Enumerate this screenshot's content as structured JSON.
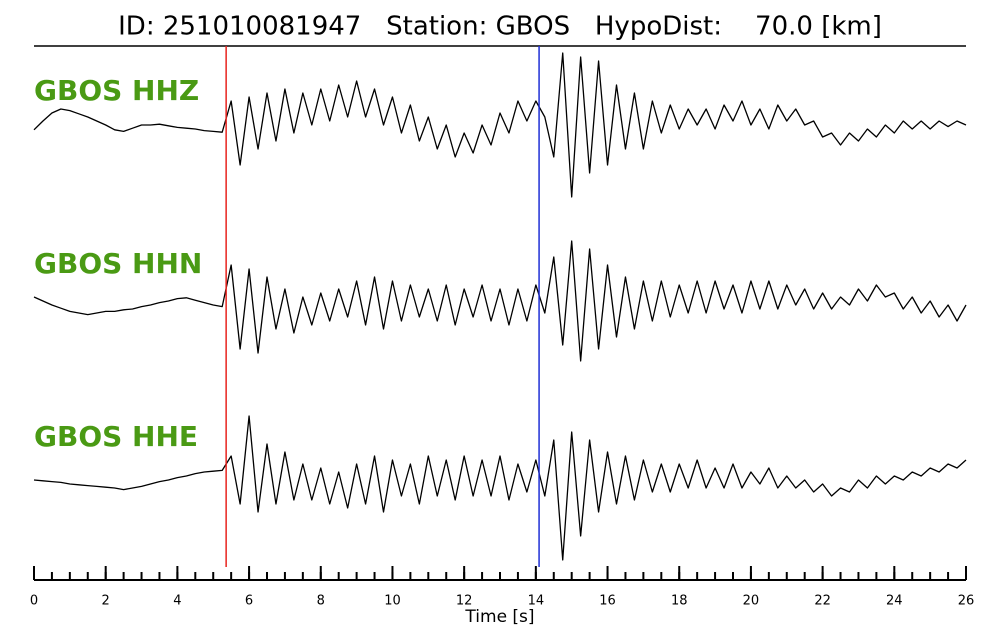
{
  "chart_data": {
    "type": "seismogram",
    "title": "ID: 251010081947   Station: GBOS   HypoDist:    70.0 [km]",
    "xlabel": "Time [s]",
    "xlim": [
      0,
      26
    ],
    "xticks": [
      0,
      2,
      4,
      6,
      8,
      10,
      12,
      14,
      16,
      18,
      20,
      22,
      24,
      26
    ],
    "xminorticks": [
      0,
      0.5,
      1,
      1.5,
      2,
      2.5,
      3,
      3.5,
      4,
      4.5,
      5,
      5.5,
      6,
      6.5,
      7,
      7.5,
      8,
      8.5,
      9,
      9.5,
      10,
      10.5,
      11,
      11.5,
      12,
      12.5,
      13,
      13.5,
      14,
      14.5,
      15,
      15.5,
      16,
      16.5,
      17,
      17.5,
      18,
      18.5,
      19,
      19.5,
      20,
      20.5,
      21,
      21.5,
      22,
      22.5,
      23,
      23.5,
      24,
      24.5,
      25,
      25.5,
      26
    ],
    "ylim": [
      -1,
      1
    ],
    "label_color": "#4a9a14",
    "markers": [
      {
        "x": 5.36,
        "color": "#e8231e"
      },
      {
        "x": 14.09,
        "color": "#1f2fd6"
      }
    ],
    "x": [
      0,
      0.25,
      0.5,
      0.75,
      1,
      1.25,
      1.5,
      1.75,
      2,
      2.25,
      2.5,
      2.75,
      3,
      3.25,
      3.5,
      3.75,
      4,
      4.25,
      4.5,
      4.75,
      5,
      5.25,
      5.5,
      5.75,
      6,
      6.25,
      6.5,
      6.75,
      7,
      7.25,
      7.5,
      7.75,
      8,
      8.25,
      8.5,
      8.75,
      9,
      9.25,
      9.5,
      9.75,
      10,
      10.25,
      10.5,
      10.75,
      11,
      11.25,
      11.5,
      11.75,
      12,
      12.25,
      12.5,
      12.75,
      13,
      13.25,
      13.5,
      13.75,
      14,
      14.25,
      14.5,
      14.75,
      15,
      15.25,
      15.5,
      15.75,
      16,
      16.25,
      16.5,
      16.75,
      17,
      17.25,
      17.5,
      17.75,
      18,
      18.25,
      18.5,
      18.75,
      19,
      19.25,
      19.5,
      19.75,
      20,
      20.25,
      20.5,
      20.75,
      21,
      21.25,
      21.5,
      21.75,
      22,
      22.25,
      22.5,
      22.75,
      23,
      23.25,
      23.5,
      23.75,
      24,
      24.25,
      24.5,
      24.75,
      25,
      25.25,
      25.5,
      25.75,
      26
    ],
    "series": [
      {
        "name": "GBOS HHZ",
        "color": "#000000",
        "values": [
          -0.06,
          0.05,
          0.15,
          0.2,
          0.18,
          0.14,
          0.1,
          0.05,
          0.0,
          -0.06,
          -0.08,
          -0.04,
          0.0,
          0.0,
          0.01,
          -0.01,
          -0.03,
          -0.04,
          -0.05,
          -0.07,
          -0.08,
          -0.09,
          0.3,
          -0.5,
          0.35,
          -0.3,
          0.4,
          -0.2,
          0.45,
          -0.1,
          0.4,
          0.0,
          0.45,
          0.05,
          0.5,
          0.1,
          0.55,
          0.1,
          0.45,
          0.0,
          0.35,
          -0.1,
          0.25,
          -0.2,
          0.1,
          -0.3,
          0.0,
          -0.4,
          -0.1,
          -0.35,
          0.0,
          -0.25,
          0.15,
          -0.1,
          0.3,
          0.05,
          0.3,
          0.1,
          -0.4,
          0.9,
          -0.9,
          0.85,
          -0.6,
          0.8,
          -0.5,
          0.5,
          -0.3,
          0.4,
          -0.3,
          0.3,
          -0.1,
          0.25,
          -0.05,
          0.2,
          0.0,
          0.2,
          -0.05,
          0.25,
          0.05,
          0.3,
          0.0,
          0.2,
          -0.05,
          0.25,
          0.05,
          0.2,
          0.0,
          0.05,
          -0.15,
          -0.1,
          -0.25,
          -0.1,
          -0.2,
          -0.05,
          -0.15,
          0.0,
          -0.1,
          0.05,
          -0.05,
          0.05,
          -0.05,
          0.05,
          -0.02,
          0.05,
          0.0
        ]
      },
      {
        "name": "GBOS HHN",
        "color": "#000000",
        "values": [
          0.1,
          0.05,
          0.0,
          -0.04,
          -0.08,
          -0.1,
          -0.12,
          -0.1,
          -0.08,
          -0.08,
          -0.06,
          -0.05,
          -0.02,
          0.0,
          0.03,
          0.05,
          0.08,
          0.09,
          0.06,
          0.03,
          0.0,
          -0.02,
          0.5,
          -0.55,
          0.45,
          -0.6,
          0.35,
          -0.3,
          0.2,
          -0.35,
          0.1,
          -0.25,
          0.15,
          -0.2,
          0.2,
          -0.15,
          0.3,
          -0.25,
          0.35,
          -0.3,
          0.3,
          -0.2,
          0.25,
          -0.15,
          0.2,
          -0.2,
          0.25,
          -0.25,
          0.2,
          -0.15,
          0.25,
          -0.2,
          0.2,
          -0.25,
          0.2,
          -0.2,
          0.25,
          -0.1,
          0.6,
          -0.5,
          0.8,
          -0.7,
          0.7,
          -0.55,
          0.5,
          -0.4,
          0.35,
          -0.3,
          0.3,
          -0.2,
          0.3,
          -0.15,
          0.25,
          -0.1,
          0.3,
          -0.1,
          0.3,
          -0.05,
          0.25,
          -0.1,
          0.3,
          -0.05,
          0.3,
          -0.05,
          0.25,
          0.0,
          0.2,
          -0.05,
          0.15,
          -0.05,
          0.1,
          0.0,
          0.2,
          0.05,
          0.25,
          0.1,
          0.15,
          -0.05,
          0.1,
          -0.1,
          0.05,
          -0.15,
          0.0,
          -0.2,
          0.0
        ]
      },
      {
        "name": "GBOS HHE",
        "color": "#000000",
        "values": [
          0.0,
          -0.01,
          -0.02,
          -0.03,
          -0.05,
          -0.06,
          -0.07,
          -0.08,
          -0.09,
          -0.1,
          -0.12,
          -0.1,
          -0.08,
          -0.05,
          -0.02,
          0.0,
          0.03,
          0.05,
          0.08,
          0.1,
          0.11,
          0.12,
          0.3,
          -0.3,
          0.8,
          -0.4,
          0.45,
          -0.3,
          0.35,
          -0.25,
          0.2,
          -0.25,
          0.15,
          -0.3,
          0.1,
          -0.35,
          0.2,
          -0.3,
          0.3,
          -0.4,
          0.25,
          -0.2,
          0.2,
          -0.3,
          0.3,
          -0.2,
          0.25,
          -0.25,
          0.3,
          -0.2,
          0.25,
          -0.2,
          0.3,
          -0.25,
          0.2,
          -0.15,
          0.25,
          -0.2,
          0.5,
          -1.0,
          0.6,
          -0.7,
          0.5,
          -0.4,
          0.35,
          -0.3,
          0.3,
          -0.25,
          0.25,
          -0.15,
          0.2,
          -0.15,
          0.2,
          -0.1,
          0.25,
          -0.1,
          0.15,
          -0.1,
          0.2,
          -0.1,
          0.1,
          -0.05,
          0.15,
          -0.1,
          0.05,
          -0.1,
          0.0,
          -0.15,
          -0.05,
          -0.2,
          -0.1,
          -0.15,
          0.0,
          -0.1,
          0.05,
          -0.05,
          0.05,
          0.0,
          0.1,
          0.05,
          0.15,
          0.1,
          0.2,
          0.15,
          0.25
        ]
      }
    ]
  }
}
